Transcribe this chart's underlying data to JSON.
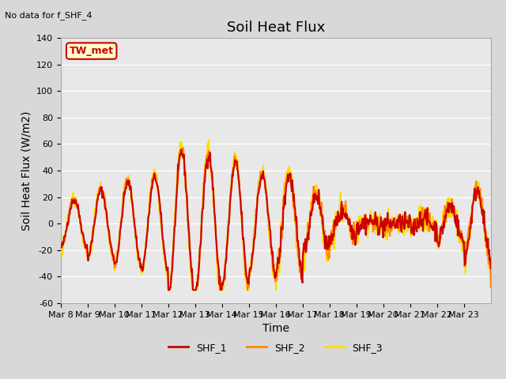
{
  "title": "Soil Heat Flux",
  "subtitle": "No data for f_SHF_4",
  "ylabel": "Soil Heat Flux (W/m2)",
  "xlabel": "Time",
  "ylim": [
    -60,
    140
  ],
  "yticks": [
    -60,
    -40,
    -20,
    0,
    20,
    40,
    60,
    80,
    100,
    120,
    140
  ],
  "xtick_labels": [
    "Mar 8",
    "Mar 9",
    "Mar 10",
    "Mar 11",
    "Mar 12",
    "Mar 13",
    "Mar 14",
    "Mar 15",
    "Mar 16",
    "Mar 17",
    "Mar 18",
    "Mar 19",
    "Mar 20",
    "Mar 21",
    "Mar 22",
    "Mar 23"
  ],
  "series": {
    "SHF_1": {
      "color": "#cc0000",
      "linewidth": 1.5
    },
    "SHF_2": {
      "color": "#ff8800",
      "linewidth": 1.5
    },
    "SHF_3": {
      "color": "#ffdd00",
      "linewidth": 1.5
    }
  },
  "annotation_box": {
    "text": "TW_met",
    "facecolor": "#ffffcc",
    "edgecolor": "#cc0000",
    "textcolor": "#cc0000"
  },
  "title_fontsize": 13,
  "axis_label_fontsize": 10,
  "tick_fontsize": 8
}
